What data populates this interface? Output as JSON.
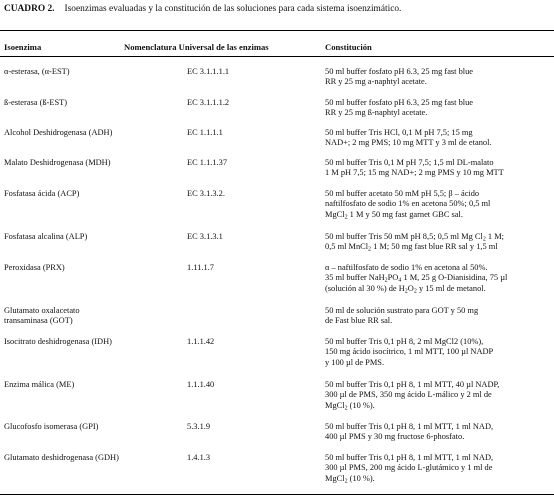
{
  "caption": {
    "label": "CUADRO 2.",
    "text": "Isoenzimas evaluadas y la constitución de las soluciones para cada sistema isoenzimático."
  },
  "headers": {
    "isoenzima": "Isoenzima",
    "nomenclatura": "Nomenclatura Universal de las enzimas",
    "constitucion": "Constitución"
  },
  "rows": [
    {
      "name": "α-esterasa, (α-EST)",
      "ec": "EC 3.1.1.1.1",
      "lines": [
        [
          "50 ml buffer fosfato pH 6.3, 25 mg fast blue"
        ],
        [
          "RR y 25 mg a-naphtyl acetate."
        ]
      ]
    },
    {
      "name": "ß-esterasa (ß-EST)",
      "ec": "EC 3.1.1.1.2",
      "lines": [
        [
          "50 ml buffer fosfato pH 6.3, 25 mg fast blue"
        ],
        [
          "RR y 25 mg ß-naphtyl acetate."
        ]
      ]
    },
    {
      "name": "Alcohol Deshidrogenasa (ADH)",
      "ec": "EC 1.1.1.1",
      "lines": [
        [
          "50 ml buffer Tris HCl, 0,1 M pH 7,5; 15 mg"
        ],
        [
          "NAD+; 2 mg PMS; 10 mg MTT y 3 ml de etanol."
        ]
      ]
    },
    {
      "name": "Malato Deshidrogenasa (MDH)",
      "ec": "EC 1.1.1.37",
      "lines": [
        [
          "50 ml buffer Tris 0,1 M pH 7,5; 1,5 ml DL-malato"
        ],
        [
          "1 M pH 7,5; 15 mg NAD+; 2 mg PMS y 10 mg MTT"
        ]
      ]
    },
    {
      "name": "Fosfatasa ácida (ACP)",
      "ec": "EC 3.1.3.2.",
      "lines": [
        [
          "50 ml buffer acetato 50 mM pH 5,5; β – ácido"
        ],
        [
          "naftilfosfato de sodio 1% en acetona 50%; 0,5 ml"
        ],
        [
          "MgCl",
          {
            "sub": "2"
          },
          " 1 M y 50 mg fast garnet GBC sal."
        ]
      ]
    },
    {
      "name": "Fosfatasa alcalina (ALP)",
      "ec": "EC 3.1.3.1",
      "lines": [
        [
          "50 ml buffer Tris 50 mM pH 8,5; 0,5 ml Mg Cl",
          {
            "sub": "2"
          },
          " 1 M;"
        ],
        [
          "0,5 ml MnCl",
          {
            "sub": "2"
          },
          " 1 M; 50 mg fast blue RR sal y 1,5 ml"
        ]
      ]
    },
    {
      "name": "Peroxidasa (PRX)",
      "ec": "1.11.1.7",
      "lines": [
        [
          "α – naftilfosfato de sodio 1% en acetona al 50%."
        ],
        [
          "35 ml buffer NaH",
          {
            "sub": "2"
          },
          "PO",
          {
            "sub": "4"
          },
          " 1 M, 25 g O-Dianisidina, 75 µl"
        ],
        [
          "(solución al 30 %) de H",
          {
            "sub": "2"
          },
          "O",
          {
            "sub": "2"
          },
          " y 15 ml de metanol."
        ]
      ]
    },
    {
      "name": "Glutamato oxalacetato transaminasa (GOT)",
      "ec": "",
      "lines": [
        [
          "50 ml de solución sustrato para GOT y 50 mg"
        ],
        [
          "de Fast blue RR sal."
        ]
      ]
    },
    {
      "name": "Isocitrato deshidrogenasa (IDH)",
      "ec": "1.1.1.42",
      "lines": [
        [
          "50 ml buffer Tris 0,1 pH 8, 2 ml MgCl2 (10%),"
        ],
        [
          "150 mg ácido isocítrico, 1 ml MTT, 100 µl NADP"
        ],
        [
          "y 100 µl de PMS."
        ]
      ]
    },
    {
      "name": "Enzima málica (ME)",
      "ec": "1.1.1.40",
      "lines": [
        [
          "50 ml buffer Tris 0,1 pH 8, 1 ml MTT, 40 µl NADP,"
        ],
        [
          "300 µl de PMS, 350 mg ácido L-málico y 2 ml de"
        ],
        [
          "MgCl",
          {
            "sub": "2"
          },
          " (10 %)."
        ]
      ]
    },
    {
      "name": "Glucofosfo isomerasa (GPI)",
      "ec": "5.3.1.9",
      "lines": [
        [
          "50 ml buffer Tris 0,1 pH 8, 1 ml MTT, 1 ml NAD,"
        ],
        [
          "400 µl PMS y 30 mg fructose 6-phosfato."
        ]
      ]
    },
    {
      "name": "Glutamato deshidrogenasa (GDH)",
      "ec": "1.4.1.3",
      "lines": [
        [
          "50 ml buffer Tris 0,1 pH 8, 1 ml MTT, 1 ml NAD,"
        ],
        [
          "300 µl PMS, 200 mg ácido L-glutámico y 1 ml de"
        ],
        [
          "MgCl",
          {
            "sub": "2"
          },
          " (10 %)."
        ]
      ]
    }
  ]
}
